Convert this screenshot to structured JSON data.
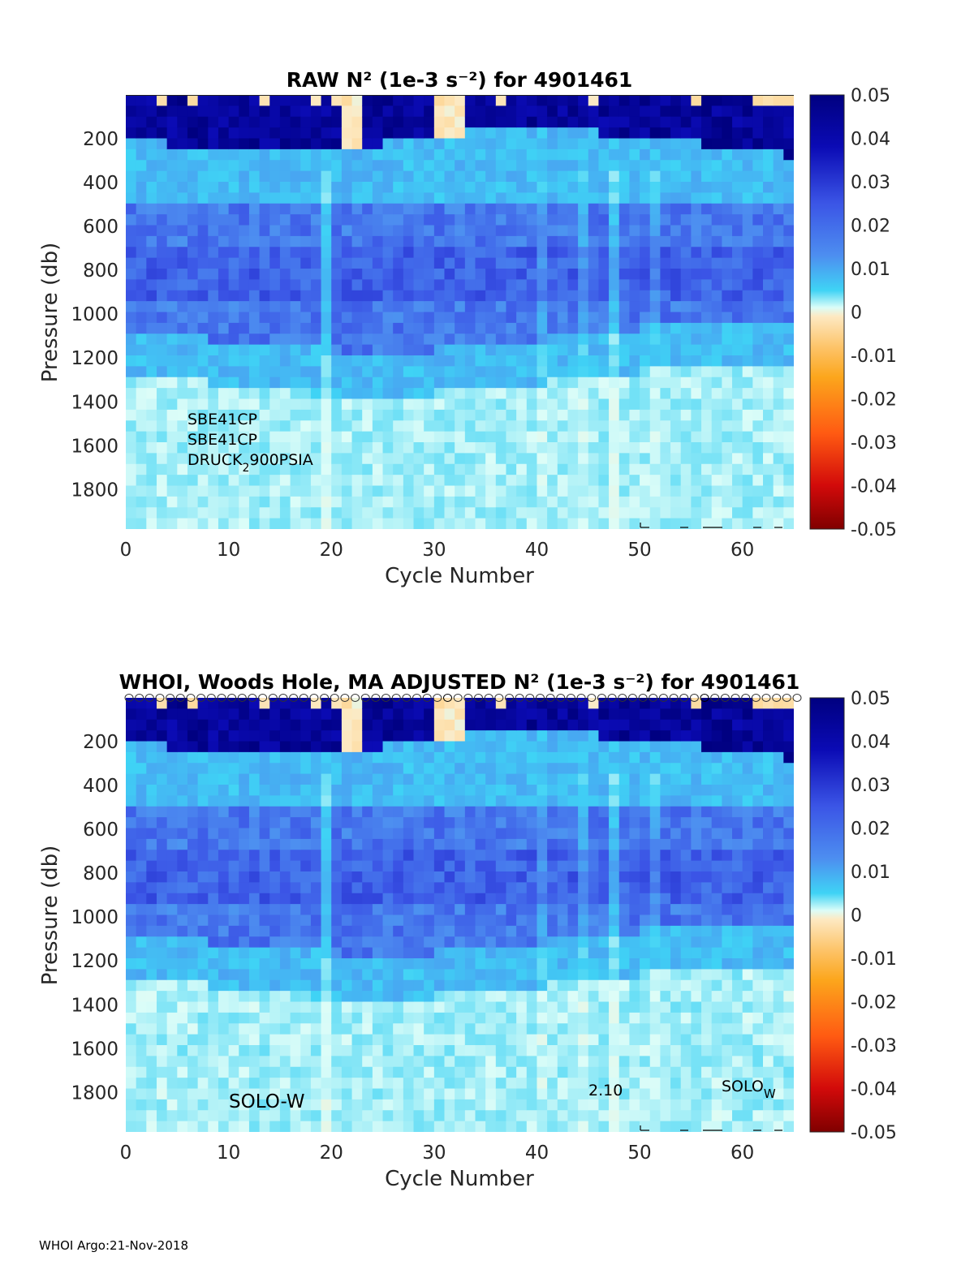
{
  "footer": "WHOI Argo:21-Nov-2018",
  "colorbar": {
    "ticks": [
      "0.05",
      "0.04",
      "0.03",
      "0.02",
      "0.01",
      "0",
      "-0.01",
      "-0.02",
      "-0.03",
      "-0.04",
      "-0.05"
    ],
    "range": [
      -0.05,
      0.05
    ]
  },
  "chart_data": [
    {
      "type": "heatmap",
      "title": "RAW N² (1e-3 s⁻²) for 4901461",
      "xlabel": "Cycle Number",
      "ylabel": "Pressure (db)",
      "xlim": [
        0,
        65
      ],
      "ylim": [
        1980,
        0
      ],
      "xticks": [
        "0",
        "10",
        "20",
        "30",
        "40",
        "50",
        "60"
      ],
      "yticks": [
        "200",
        "400",
        "600",
        "800",
        "1000",
        "1200",
        "1400",
        "1600",
        "1800"
      ],
      "annotations": [
        "SBE41CP",
        "SBE41CP",
        "DRUCK",
        "2",
        "900PSIA"
      ],
      "profile_markers": false,
      "color_units": "1e-3 s^-2"
    },
    {
      "type": "heatmap",
      "title": "WHOI, Woods Hole, MA  ADJUSTED N² (1e-3 s⁻²) for 4901461",
      "xlabel": "Cycle Number",
      "ylabel": "Pressure (db)",
      "xlim": [
        0,
        65
      ],
      "ylim": [
        1980,
        0
      ],
      "xticks": [
        "0",
        "10",
        "20",
        "30",
        "40",
        "50",
        "60"
      ],
      "yticks": [
        "200",
        "400",
        "600",
        "800",
        "1000",
        "1200",
        "1400",
        "1600",
        "1800"
      ],
      "annotations": [
        "SOLO-W",
        "2.10",
        "SOLO",
        "W"
      ],
      "profile_markers": true,
      "color_units": "1e-3 s^-2"
    }
  ]
}
